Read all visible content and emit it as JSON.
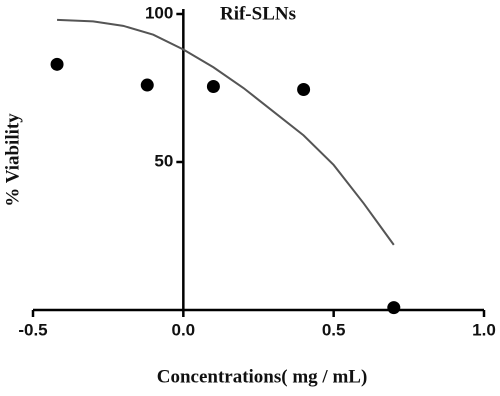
{
  "chart_data": {
    "type": "scatter",
    "title": "Rif-SLNs",
    "x_label": "Concentrations( mg / mL)",
    "y_label": "% Viability",
    "xlim": [
      -0.5,
      1.0
    ],
    "ylim": [
      0,
      100
    ],
    "xticks": [
      -0.5,
      {
        "value": 0,
        "label": "0.0"
      },
      0.5,
      {
        "value": 1,
        "label": "1.0"
      }
    ],
    "yticks": [
      50,
      100
    ],
    "series": [
      {
        "type": "scatter",
        "color": "#000000",
        "x": [
          -0.42,
          -0.12,
          0.1,
          0.4,
          0.7
        ],
        "values": [
          83,
          76,
          75.5,
          74.5,
          0.8
        ]
      },
      {
        "type": "line",
        "color": "#555555",
        "x": [
          -0.42,
          -0.3,
          -0.2,
          -0.1,
          0,
          0.1,
          0.2,
          0.3,
          0.4,
          0.5,
          0.6,
          0.7
        ],
        "values": [
          98,
          97.5,
          96,
          93,
          88,
          82,
          75,
          67,
          59,
          49,
          36,
          22
        ]
      }
    ]
  }
}
